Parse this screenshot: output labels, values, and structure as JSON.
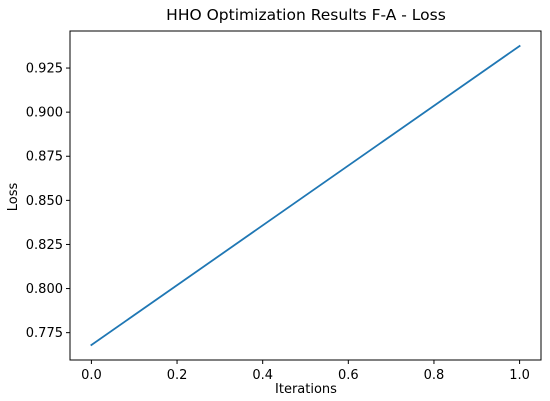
{
  "chart_data": {
    "type": "line",
    "title": "HHO Optimization Results F-A - Loss",
    "xlabel": "Iterations",
    "ylabel": "Loss",
    "xlim": [
      -0.05,
      1.05
    ],
    "ylim": [
      0.7595,
      0.946
    ],
    "x_ticks": [
      0.0,
      0.2,
      0.4,
      0.6,
      0.8,
      1.0
    ],
    "x_tick_labels": [
      "0.0",
      "0.2",
      "0.4",
      "0.6",
      "0.8",
      "1.0"
    ],
    "y_ticks": [
      0.775,
      0.8,
      0.825,
      0.85,
      0.875,
      0.9,
      0.925
    ],
    "y_tick_labels": [
      "0.775",
      "0.800",
      "0.825",
      "0.850",
      "0.875",
      "0.900",
      "0.925"
    ],
    "grid": false,
    "series": [
      {
        "color": "#1f77b4",
        "x": [
          0,
          1
        ],
        "y": [
          0.768,
          0.9375
        ]
      }
    ]
  }
}
